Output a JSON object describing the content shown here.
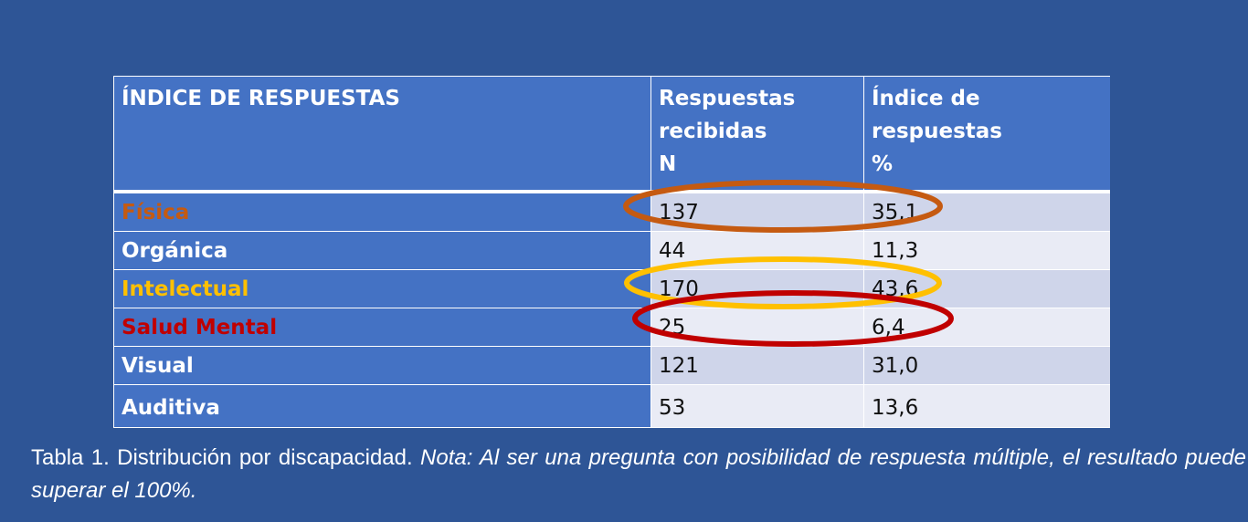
{
  "table": {
    "headers": {
      "col1": "ÍNDICE DE RESPUESTAS",
      "col2_line1": "Respuestas",
      "col2_line2": "recibidas",
      "col2_line3": "N",
      "col3_line1": "Índice de respuestas",
      "col3_line2": "%"
    },
    "rows": [
      {
        "label": "Física",
        "n": "137",
        "pct": "35,1",
        "label_color": "#c55a11"
      },
      {
        "label": "Orgánica",
        "n": "44",
        "pct": "11,3",
        "label_color": "#ffffff"
      },
      {
        "label": "Intelectual",
        "n": "170",
        "pct": "43,6",
        "label_color": "#ffc000"
      },
      {
        "label": "Salud Mental",
        "n": "25",
        "pct": "6,4",
        "label_color": "#c00000"
      },
      {
        "label": "Visual",
        "n": "121",
        "pct": "31,0",
        "label_color": "#ffffff"
      },
      {
        "label": "Auditiva",
        "n": "53",
        "pct": "13,6",
        "label_color": "#ffffff"
      }
    ]
  },
  "highlights": [
    {
      "row": "Física",
      "color": "#c55a11"
    },
    {
      "row": "Intelectual",
      "color": "#ffc000"
    },
    {
      "row": "Salud Mental",
      "color": "#c00000"
    }
  ],
  "caption": {
    "plain": "Tabla 1. Distribución por discapacidad. ",
    "italic": "Nota: Al ser una pregunta con posibilidad de respuesta múltiple, el resultado puede superar el 100%."
  }
}
